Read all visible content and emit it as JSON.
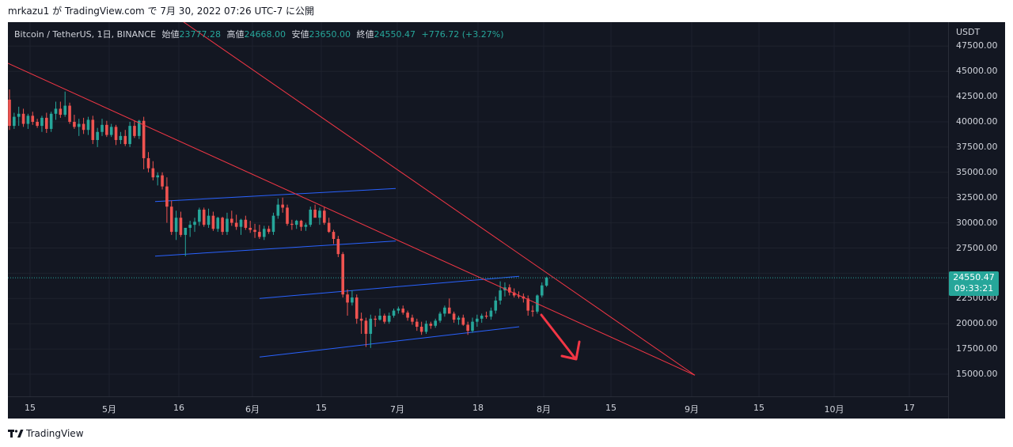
{
  "header": {
    "text": "mrkazu1 が TradingView.com で 7月 30, 2022 07:26 UTC-7 に公開"
  },
  "legend": {
    "symbol": "Bitcoin / TetherUS, 1日, BINANCE",
    "open_label": "始値",
    "open": "23777.28",
    "high_label": "高値",
    "high": "24668.00",
    "low_label": "安値",
    "low": "23650.00",
    "close_label": "終値",
    "close": "24550.47",
    "change": "+776.72 (+3.27%)"
  },
  "axis": {
    "currency": "USDT",
    "y_labels": [
      "47500.00",
      "45000.00",
      "42500.00",
      "40000.00",
      "37500.00",
      "35000.00",
      "32500.00",
      "30000.00",
      "27500.00",
      "22500.00",
      "20000.00",
      "17500.00",
      "15000.00"
    ],
    "x_labels": [
      "15",
      "5月",
      "16",
      "6月",
      "15",
      "7月",
      "18",
      "8月",
      "15",
      "9月",
      "15",
      "10月",
      "17"
    ]
  },
  "price_tag": {
    "price": "24550.47",
    "countdown": "09:33:21"
  },
  "colors": {
    "background": "#131722",
    "up": "#26a69a",
    "down": "#ef5350",
    "trendline": "#f23645",
    "channel": "#2962ff"
  },
  "footer": {
    "brand": "TradingView",
    "logo_icon": "tradingview-logo-icon"
  },
  "chart_data": {
    "type": "candlestick",
    "title": "Bitcoin / TetherUS, 1日, BINANCE",
    "ylim": [
      12500,
      50000
    ],
    "y_ticks": [
      15000,
      17500,
      20000,
      22500,
      25000,
      27500,
      30000,
      32500,
      35000,
      37500,
      40000,
      42500,
      45000,
      47500
    ],
    "grid": true,
    "candles": [
      [
        42200,
        43200,
        39200,
        39600
      ],
      [
        39600,
        40900,
        39300,
        40500
      ],
      [
        40500,
        41500,
        39600,
        40800
      ],
      [
        40800,
        41300,
        39500,
        39800
      ],
      [
        39800,
        40800,
        39300,
        40600
      ],
      [
        40600,
        41000,
        39700,
        40000
      ],
      [
        40000,
        40300,
        39400,
        39600
      ],
      [
        39600,
        40600,
        39000,
        40400
      ],
      [
        40400,
        40900,
        38900,
        39300
      ],
      [
        39300,
        41000,
        39000,
        40800
      ],
      [
        40800,
        42000,
        40200,
        41300
      ],
      [
        41300,
        42000,
        40400,
        40700
      ],
      [
        40700,
        43000,
        40500,
        41600
      ],
      [
        41600,
        41900,
        39800,
        40000
      ],
      [
        40000,
        40700,
        39300,
        39500
      ],
      [
        39500,
        40300,
        38600,
        39800
      ],
      [
        39800,
        40400,
        38800,
        39200
      ],
      [
        39200,
        40500,
        38700,
        40200
      ],
      [
        40200,
        40600,
        37800,
        38200
      ],
      [
        38200,
        39400,
        37500,
        39000
      ],
      [
        39000,
        40300,
        38600,
        39700
      ],
      [
        39700,
        40100,
        38500,
        38700
      ],
      [
        38700,
        39800,
        38500,
        39500
      ],
      [
        39500,
        39700,
        37700,
        38200
      ],
      [
        38200,
        39000,
        37800,
        38600
      ],
      [
        38600,
        39200,
        37600,
        37800
      ],
      [
        37800,
        40000,
        37500,
        39600
      ],
      [
        39600,
        40100,
        38400,
        38600
      ],
      [
        38600,
        40200,
        38300,
        40100
      ],
      [
        40100,
        40500,
        35300,
        36400
      ],
      [
        36400,
        37000,
        35000,
        35400
      ],
      [
        35400,
        36100,
        34200,
        34500
      ],
      [
        34500,
        35000,
        33700,
        34700
      ],
      [
        34700,
        35000,
        33300,
        33600
      ],
      [
        33600,
        34500,
        30000,
        31600
      ],
      [
        31600,
        32200,
        28800,
        29100
      ],
      [
        29100,
        31200,
        28300,
        30500
      ],
      [
        30500,
        31100,
        28600,
        28800
      ],
      [
        28800,
        29200,
        26700,
        29500
      ],
      [
        29500,
        30200,
        28600,
        29800
      ],
      [
        29800,
        30500,
        29100,
        30100
      ],
      [
        30100,
        31500,
        29700,
        31300
      ],
      [
        31300,
        31500,
        29600,
        29800
      ],
      [
        29800,
        31400,
        29500,
        30700
      ],
      [
        30700,
        31100,
        29200,
        29400
      ],
      [
        29400,
        30600,
        29100,
        30500
      ],
      [
        30500,
        30600,
        28800,
        29100
      ],
      [
        29100,
        31000,
        28800,
        30400
      ],
      [
        30400,
        31200,
        29700,
        30000
      ],
      [
        30000,
        30800,
        29300,
        29600
      ],
      [
        29600,
        30400,
        28800,
        30300
      ],
      [
        30300,
        30700,
        29300,
        29500
      ],
      [
        29500,
        30200,
        29000,
        29300
      ],
      [
        29300,
        29900,
        28500,
        29100
      ],
      [
        29100,
        29800,
        28400,
        28600
      ],
      [
        28600,
        29700,
        28300,
        29400
      ],
      [
        29400,
        29700,
        28900,
        29100
      ],
      [
        29100,
        31000,
        28800,
        30700
      ],
      [
        30700,
        32400,
        30400,
        31800
      ],
      [
        31800,
        32500,
        31000,
        31500
      ],
      [
        31500,
        31800,
        29700,
        29900
      ],
      [
        29900,
        30300,
        29300,
        29800
      ],
      [
        29800,
        30300,
        29400,
        30200
      ],
      [
        30200,
        30300,
        29200,
        29600
      ],
      [
        29600,
        30000,
        29200,
        29800
      ],
      [
        29800,
        31600,
        29600,
        31300
      ],
      [
        31300,
        31800,
        30700,
        30500
      ],
      [
        30500,
        31500,
        29800,
        31200
      ],
      [
        31200,
        31600,
        29800,
        30000
      ],
      [
        30000,
        30500,
        29000,
        29100
      ],
      [
        29100,
        29300,
        27900,
        28400
      ],
      [
        28400,
        28700,
        26600,
        26900
      ],
      [
        26900,
        27100,
        22600,
        22900
      ],
      [
        22900,
        23400,
        20800,
        22100
      ],
      [
        22100,
        23300,
        21800,
        22600
      ],
      [
        22600,
        22900,
        20000,
        20500
      ],
      [
        20500,
        21100,
        19000,
        20300
      ],
      [
        20300,
        20600,
        17700,
        19000
      ],
      [
        19000,
        20900,
        17600,
        20500
      ],
      [
        20500,
        20800,
        19700,
        20400
      ],
      [
        20400,
        21500,
        20300,
        20800
      ],
      [
        20800,
        21000,
        20000,
        20200
      ],
      [
        20200,
        21100,
        20000,
        20800
      ],
      [
        20800,
        21500,
        20600,
        21300
      ],
      [
        21300,
        21700,
        21000,
        21500
      ],
      [
        21500,
        21800,
        20900,
        21100
      ],
      [
        21100,
        21300,
        20300,
        20600
      ],
      [
        20600,
        20900,
        19900,
        20200
      ],
      [
        20200,
        20500,
        19300,
        19700
      ],
      [
        19700,
        20200,
        18900,
        19200
      ],
      [
        19200,
        20300,
        19000,
        20000
      ],
      [
        20000,
        20200,
        19500,
        19800
      ],
      [
        19800,
        20500,
        19600,
        20300
      ],
      [
        20300,
        21200,
        20100,
        21000
      ],
      [
        21000,
        21800,
        20700,
        21600
      ],
      [
        21600,
        22500,
        21200,
        21000
      ],
      [
        21000,
        21200,
        20100,
        20400
      ],
      [
        20400,
        20800,
        19900,
        20600
      ],
      [
        20600,
        20900,
        19800,
        19900
      ],
      [
        19900,
        20200,
        18900,
        19300
      ],
      [
        19300,
        20600,
        19100,
        20200
      ],
      [
        20200,
        20900,
        19700,
        20500
      ],
      [
        20500,
        21000,
        20100,
        20800
      ],
      [
        20800,
        21200,
        20500,
        20700
      ],
      [
        20700,
        21600,
        20400,
        21300
      ],
      [
        21300,
        22700,
        21000,
        22300
      ],
      [
        22300,
        24200,
        21900,
        23300
      ],
      [
        23300,
        24100,
        22700,
        23600
      ],
      [
        23600,
        23900,
        22800,
        23100
      ],
      [
        23100,
        23500,
        22600,
        22800
      ],
      [
        22800,
        23200,
        22500,
        22700
      ],
      [
        22700,
        23000,
        22100,
        22500
      ],
      [
        22500,
        22800,
        20800,
        21300
      ],
      [
        21300,
        21800,
        20700,
        21200
      ],
      [
        21200,
        22900,
        21000,
        22800
      ],
      [
        22800,
        24100,
        22600,
        23800
      ],
      [
        23777.28,
        24668,
        23650,
        24550.47
      ]
    ],
    "trend_lines": [
      {
        "from": [
          "mar-31",
          45800
        ],
        "to": [
          "sep-01",
          14900
        ]
      },
      {
        "from": [
          "apr-28",
          50000
        ],
        "to": [
          "sep-01",
          14900
        ]
      }
    ],
    "channels": [
      {
        "from": [
          "may-20",
          32100
        ],
        "to": [
          "jul-01",
          33400
        ]
      },
      {
        "from": [
          "may-20",
          26700
        ],
        "to": [
          "jul-01",
          28200
        ]
      },
      {
        "from": [
          "jun-06",
          22500
        ],
        "to": [
          "jul-28",
          24700
        ]
      },
      {
        "from": [
          "jun-06",
          16700
        ],
        "to": [
          "jul-28",
          19700
        ]
      }
    ],
    "last_price": 24550.47
  }
}
